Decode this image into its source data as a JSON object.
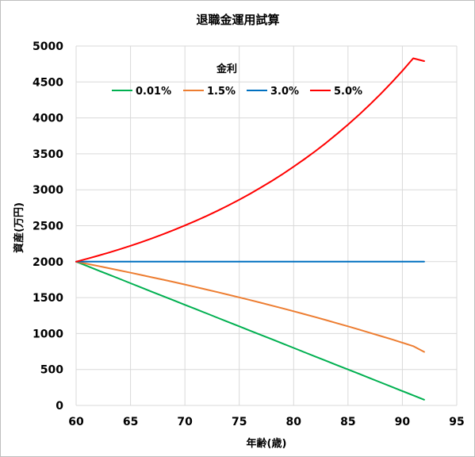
{
  "chart_data": {
    "type": "line",
    "title": "退職金運用試算",
    "xlabel": "年齢(歳)",
    "ylabel": "資産(万円)",
    "xlim": [
      60,
      95
    ],
    "ylim": [
      0,
      5000
    ],
    "x_ticks": [
      "60",
      "65",
      "70",
      "75",
      "80",
      "85",
      "90",
      "95"
    ],
    "y_ticks": [
      "0",
      "500",
      "1000",
      "1500",
      "2000",
      "2500",
      "3000",
      "3500",
      "4000",
      "4500",
      "5000"
    ],
    "grid": true,
    "legend": {
      "title": "金利",
      "position": "top-left inside"
    },
    "x": [
      60,
      61,
      62,
      63,
      64,
      65,
      66,
      67,
      68,
      69,
      70,
      71,
      72,
      73,
      74,
      75,
      76,
      77,
      78,
      79,
      80,
      81,
      82,
      83,
      84,
      85,
      86,
      87,
      88,
      89,
      90,
      91,
      92
    ],
    "series": [
      {
        "name": "0.01%",
        "color": "#00b050",
        "values": [
          2000,
          1940,
          1880,
          1820,
          1760,
          1700,
          1640,
          1580,
          1520,
          1460,
          1400,
          1340,
          1280,
          1220,
          1160,
          1100,
          1040,
          980,
          920,
          860,
          800,
          740,
          680,
          620,
          560,
          500,
          440,
          380,
          320,
          260,
          200,
          140,
          80
        ]
      },
      {
        "name": "1.5%",
        "color": "#ed7d31",
        "values": [
          2000,
          1970,
          1940,
          1909,
          1878,
          1847,
          1815,
          1782,
          1749,
          1716,
          1682,
          1647,
          1612,
          1576,
          1540,
          1503,
          1466,
          1428,
          1389,
          1350,
          1310,
          1269,
          1228,
          1186,
          1143,
          1100,
          1056,
          1011,
          966,
          920,
          873,
          825,
          745
        ]
      },
      {
        "name": "3.0%",
        "color": "#0070c0",
        "values": [
          2000,
          2000,
          2000,
          2000,
          2000,
          2000,
          2000,
          2000,
          2000,
          2000,
          2000,
          2000,
          2000,
          2000,
          2000,
          2000,
          2000,
          2000,
          2000,
          2000,
          2000,
          2000,
          2000,
          2000,
          2000,
          2000,
          2000,
          2000,
          2000,
          2000,
          2000,
          2000,
          2000
        ]
      },
      {
        "name": "5.0%",
        "color": "#ff0000",
        "values": [
          2000,
          2040,
          2082,
          2126,
          2172,
          2221,
          2272,
          2326,
          2382,
          2441,
          2503,
          2568,
          2636,
          2708,
          2783,
          2862,
          2945,
          3032,
          3124,
          3220,
          3321,
          3427,
          3538,
          3655,
          3778,
          3907,
          4042,
          4184,
          4333,
          4490,
          4655,
          4829,
          4790
        ]
      }
    ]
  }
}
